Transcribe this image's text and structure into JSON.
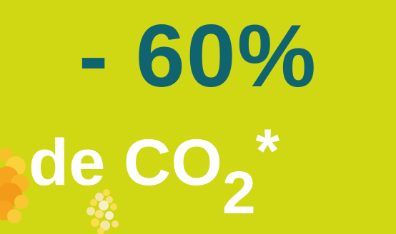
{
  "headline": {
    "text": "- 60%"
  },
  "subline": {
    "prefix": "de CO",
    "subscript": "2",
    "asterisk": "*"
  },
  "colors": {
    "background": "#CFD812",
    "headline": "#0F6470",
    "subline": "#FFFFFF",
    "flower_orange": "#F6A61E",
    "flower_yellow": "#F8DF4E",
    "flower_pale": "#F4E6A6"
  },
  "decorations": [
    "yellow-flower-icon",
    "mimosa-flower-icon"
  ]
}
